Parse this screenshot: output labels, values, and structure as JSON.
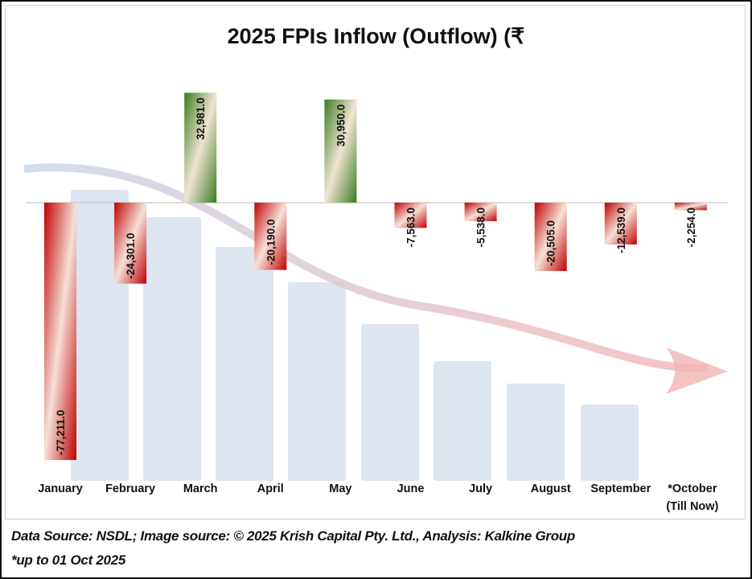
{
  "chart_data": {
    "type": "bar",
    "title": "2025 FPIs Inflow (Outflow) (₹",
    "categories": [
      "January",
      "February",
      "March",
      "April",
      "May",
      "June",
      "July",
      "August",
      "September",
      "*October"
    ],
    "category_sublabels": [
      "",
      "",
      "",
      "",
      "",
      "",
      "",
      "",
      "",
      "(Till Now)"
    ],
    "values": [
      -77211.0,
      -24301.0,
      32981.0,
      -20190.0,
      30950.0,
      -7563.0,
      -5538.0,
      -20505.0,
      -12539.0,
      -2254.0
    ],
    "data_labels": [
      "-77,211.0",
      "-24,301.0",
      "32,981.0",
      "-20,190.0",
      "30,950.0",
      "-7,563.0",
      "-5,538.0",
      "-20,505.0",
      "-12,539.0",
      "-2,254.0"
    ],
    "xlabel": "",
    "ylabel": "",
    "ylim": [
      -77211,
      32981
    ],
    "grid": false,
    "colors": {
      "positive": "#3a7d1e",
      "negative": "#c00000"
    }
  },
  "footer": {
    "source": "Data Source: NSDL; Image source: © 2025 Krish Capital Pty. Ltd., Analysis: Kalkine Group",
    "note": "*up to 01 Oct 2025"
  }
}
